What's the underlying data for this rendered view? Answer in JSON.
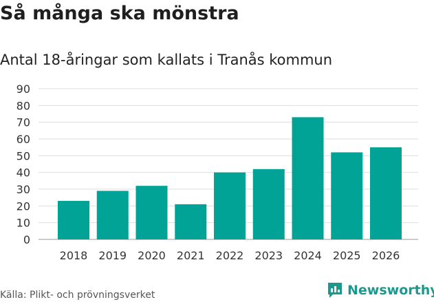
{
  "header": {
    "title": "Så många ska mönstra",
    "subtitle": "Antal 18-åringar som kallats i Tranås kommun"
  },
  "footer": {
    "source": "Källa: Plikt- och prövningsverket",
    "brand": "Newsworthy"
  },
  "colors": {
    "bar": "#00a396",
    "grid": "#dddddd",
    "brand": "#1a9a8c"
  },
  "chart_data": {
    "type": "bar",
    "title": "Så många ska mönstra",
    "subtitle": "Antal 18-åringar som kallats i Tranås kommun",
    "xlabel": "",
    "ylabel": "",
    "categories": [
      "2018",
      "2019",
      "2020",
      "2021",
      "2022",
      "2023",
      "2024",
      "2025",
      "2026"
    ],
    "values": [
      23,
      29,
      32,
      21,
      40,
      42,
      73,
      52,
      55
    ],
    "ylim": [
      0,
      90
    ],
    "yticks": [
      0,
      10,
      20,
      30,
      40,
      50,
      60,
      70,
      80,
      90
    ],
    "grid": true
  }
}
